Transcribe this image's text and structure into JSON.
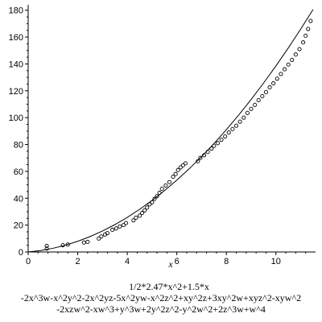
{
  "chart_data": {
    "type": "scatter",
    "title": "",
    "xlabel": "x",
    "ylabel": "",
    "xlim": [
      0,
      11.6
    ],
    "ylim": [
      0,
      184
    ],
    "xticks": [
      0,
      2,
      4,
      6,
      8,
      10
    ],
    "yticks": [
      0,
      20,
      40,
      60,
      80,
      100,
      120,
      140,
      160,
      180
    ],
    "grid": false,
    "series": [
      {
        "kind": "points",
        "x": [
          0.75,
          0.75,
          1.4,
          1.6,
          2.25,
          2.4,
          2.85,
          2.95,
          3.1,
          3.2,
          3.4,
          3.55,
          3.7,
          3.85,
          3.95,
          4.25,
          4.35,
          4.5,
          4.6,
          4.7,
          4.8,
          4.9,
          5.0,
          5.1,
          5.2,
          5.3,
          5.4,
          5.55,
          5.7,
          5.85,
          5.95,
          6.05,
          6.15,
          6.25,
          6.35,
          6.85,
          6.95,
          7.1,
          7.25,
          7.4,
          7.5,
          7.65,
          7.8,
          7.95,
          8.1,
          8.25,
          8.4,
          8.55,
          8.7,
          8.85,
          9.0,
          9.15,
          9.3,
          9.45,
          9.6,
          9.75,
          9.9,
          10.05,
          10.2,
          10.35,
          10.5,
          10.65,
          10.8,
          10.95,
          11.1,
          11.2,
          11.3,
          11.4
        ],
        "y": [
          2.5,
          4.5,
          5.0,
          5.5,
          7.0,
          7.5,
          10.0,
          11.5,
          13.0,
          14.0,
          16.5,
          17.5,
          19.0,
          20.0,
          21.5,
          23.5,
          25.5,
          27.0,
          29.0,
          31.0,
          33.0,
          35.5,
          37.0,
          39.5,
          41.5,
          44.0,
          47.0,
          49.5,
          52.0,
          56.0,
          58.0,
          61.0,
          63.0,
          64.5,
          66.0,
          67.5,
          70.0,
          72.0,
          74.5,
          77.0,
          79.0,
          81.0,
          83.5,
          86.0,
          89.0,
          91.5,
          94.0,
          97.0,
          100.0,
          103.5,
          106.5,
          109.5,
          113.0,
          116.0,
          119.0,
          122.5,
          125.5,
          129.0,
          132.5,
          136.0,
          139.5,
          143.0,
          147.0,
          151.0,
          156.0,
          161.0,
          166.0,
          172.0
        ]
      },
      {
        "kind": "curve",
        "x": [
          0,
          0.5,
          1,
          1.5,
          2,
          2.5,
          3,
          3.5,
          4,
          4.5,
          5,
          5.5,
          6,
          6.5,
          7,
          7.5,
          8,
          8.5,
          9,
          9.5,
          10,
          10.5,
          11,
          11.5
        ],
        "y": [
          0,
          1.06,
          2.74,
          5.03,
          7.94,
          11.47,
          15.62,
          20.38,
          25.76,
          31.76,
          38.38,
          45.61,
          53.46,
          61.93,
          71.02,
          80.72,
          91.04,
          101.98,
          113.54,
          125.71,
          138.5,
          151.91,
          165.94,
          180.58
        ]
      }
    ],
    "annotations": [
      "1/2*2.47*x^2+1.5*x",
      "-2x^3w-x^2y^2-2x^2yz-5x^2yw-x^2z^2+xy^2z+3xy^2w+xyz^2-xyw^2",
      "-2xzw^2-xw^3+y^3w+2y^2z^2-y^2w^2+2z^3w+w^4"
    ]
  }
}
